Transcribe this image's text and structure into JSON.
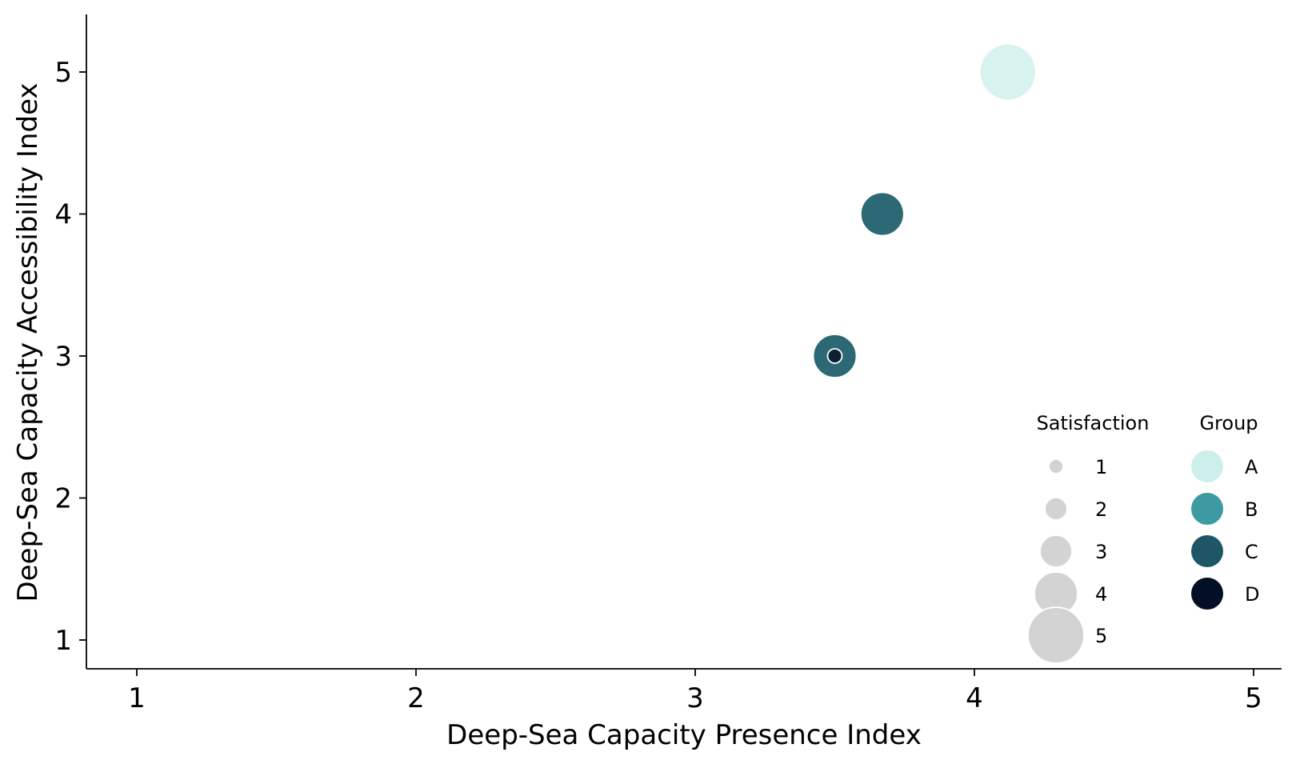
{
  "chart_data": {
    "type": "scatter",
    "xlabel": "Deep-Sea Capacity Presence Index",
    "ylabel": "Deep-Sea Capacity Accessibility Index",
    "xlim": [
      0.82,
      5.1
    ],
    "ylim": [
      0.8,
      5.4
    ],
    "xticks": [
      1,
      2,
      3,
      4,
      5
    ],
    "yticks": [
      1,
      2,
      3,
      4,
      5
    ],
    "grid": false,
    "legend_placement": "bottom-right",
    "groups": [
      {
        "name": "A",
        "color": "#cdefeb"
      },
      {
        "name": "B",
        "color": "#3d9aa3"
      },
      {
        "name": "C",
        "color": "#1f5665"
      },
      {
        "name": "D",
        "color": "#020f24"
      }
    ],
    "points": [
      {
        "x": 4.12,
        "y": 5.0,
        "size": 5,
        "group": "A"
      },
      {
        "x": 3.67,
        "y": 4.0,
        "size": 4,
        "group": "B"
      },
      {
        "x": 3.67,
        "y": 4.0,
        "size": 4,
        "group": "C"
      },
      {
        "x": 3.5,
        "y": 3.0,
        "size": 4,
        "group": "B"
      },
      {
        "x": 3.5,
        "y": 3.0,
        "size": 4,
        "group": "C"
      },
      {
        "x": 3.5,
        "y": 3.0,
        "size": 1,
        "group": "D"
      }
    ],
    "size_legend": {
      "title": "Satisfaction",
      "levels": [
        1,
        2,
        3,
        4,
        5
      ],
      "color": "#d3d3d3"
    },
    "color_legend": {
      "title": "Group"
    }
  }
}
